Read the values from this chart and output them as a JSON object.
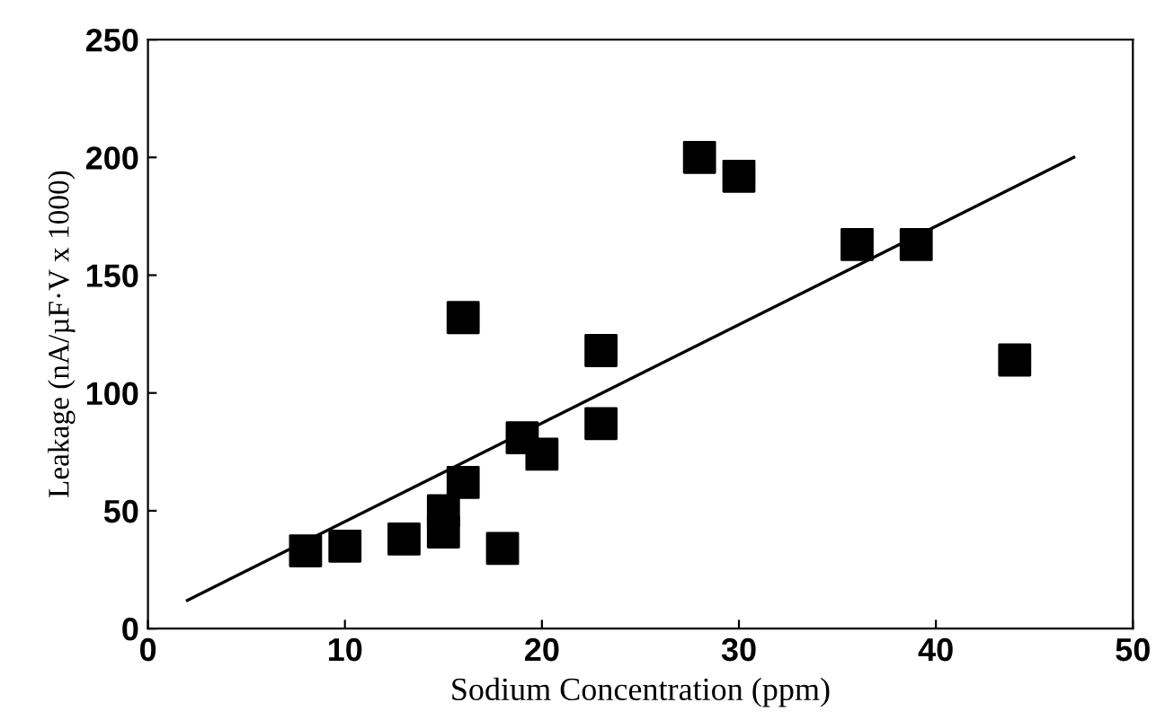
{
  "chart_data": {
    "type": "scatter",
    "xlabel": "Sodium Concentration (ppm)",
    "ylabel": "Leakage (nA/µF·V x 1000)",
    "xlim": [
      0,
      50
    ],
    "ylim": [
      0,
      250
    ],
    "xticks": [
      0,
      10,
      20,
      30,
      40,
      50
    ],
    "yticks": [
      0,
      50,
      100,
      150,
      200,
      250
    ],
    "grid": false,
    "series": [
      {
        "marker": "square",
        "color": "#000000",
        "x": [
          8,
          10,
          13,
          15,
          15,
          16,
          16,
          18,
          19,
          20,
          23,
          23,
          28,
          30,
          36,
          39,
          44
        ],
        "values": [
          33,
          35,
          38,
          41,
          50,
          62,
          132,
          34,
          81,
          74,
          118,
          87,
          200,
          192,
          163,
          163,
          114
        ]
      },
      {
        "type": "line",
        "marker": "none",
        "color": "#000000",
        "x": [
          2,
          47
        ],
        "values": [
          12,
          200
        ]
      }
    ]
  }
}
